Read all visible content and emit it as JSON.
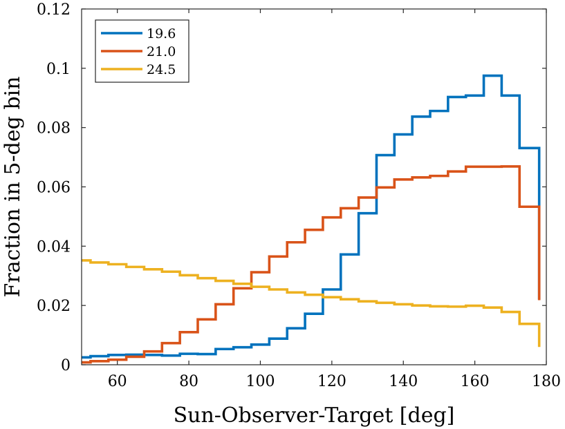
{
  "chart_data": {
    "type": "line",
    "drawstyle": "step",
    "title": "",
    "xlabel": "Sun-Observer-Target [deg]",
    "ylabel": "Fraction in 5-deg bin",
    "xlim": [
      50,
      180
    ],
    "ylim": [
      0,
      0.12
    ],
    "xticks": [
      60,
      80,
      100,
      120,
      140,
      160,
      180
    ],
    "xtick_labels": [
      "60",
      "80",
      "100",
      "120",
      "140",
      "160",
      "180"
    ],
    "yticks": [
      0,
      0.02,
      0.04,
      0.06,
      0.08,
      0.1,
      0.12
    ],
    "ytick_labels": [
      "0",
      "0.02",
      "0.04",
      "0.06",
      "0.08",
      "0.1",
      "0.12"
    ],
    "bin_edges": [
      47.5,
      52.5,
      57.5,
      62.5,
      67.5,
      72.5,
      77.5,
      82.5,
      87.5,
      92.5,
      97.5,
      102.5,
      107.5,
      112.5,
      117.5,
      122.5,
      127.5,
      132.5,
      137.5,
      142.5,
      147.5,
      152.5,
      157.5,
      162.5,
      167.5,
      172.5,
      178.0
    ],
    "legend_position": "top-left",
    "grid": false,
    "series": [
      {
        "name": "19.6",
        "color": "#0072BD",
        "values": [
          0.0025,
          0.0029,
          0.0033,
          0.0034,
          0.0033,
          0.0031,
          0.0037,
          0.0036,
          0.0053,
          0.0059,
          0.0068,
          0.0088,
          0.0123,
          0.0172,
          0.0254,
          0.0372,
          0.0511,
          0.0707,
          0.0777,
          0.0837,
          0.0856,
          0.0903,
          0.0908,
          0.0975,
          0.0908,
          0.0731
        ],
        "end_value": 0.022
      },
      {
        "name": "21.0",
        "color": "#D95319",
        "values": [
          0.0008,
          0.0012,
          0.0017,
          0.0027,
          0.0045,
          0.0073,
          0.011,
          0.0153,
          0.0204,
          0.0258,
          0.0312,
          0.0365,
          0.0413,
          0.0455,
          0.0497,
          0.0528,
          0.0564,
          0.0598,
          0.0625,
          0.0632,
          0.0637,
          0.0652,
          0.0668,
          0.0668,
          0.0669,
          0.0533
        ],
        "end_value": 0.0218
      },
      {
        "name": "24.5",
        "color": "#EDB120",
        "values": [
          0.0352,
          0.0345,
          0.0339,
          0.033,
          0.0322,
          0.0314,
          0.0302,
          0.0292,
          0.0283,
          0.0273,
          0.0263,
          0.0254,
          0.0244,
          0.0236,
          0.0228,
          0.0221,
          0.0214,
          0.0209,
          0.0204,
          0.02,
          0.0197,
          0.0196,
          0.0199,
          0.0193,
          0.0178,
          0.0138
        ],
        "end_value": 0.006
      }
    ]
  }
}
